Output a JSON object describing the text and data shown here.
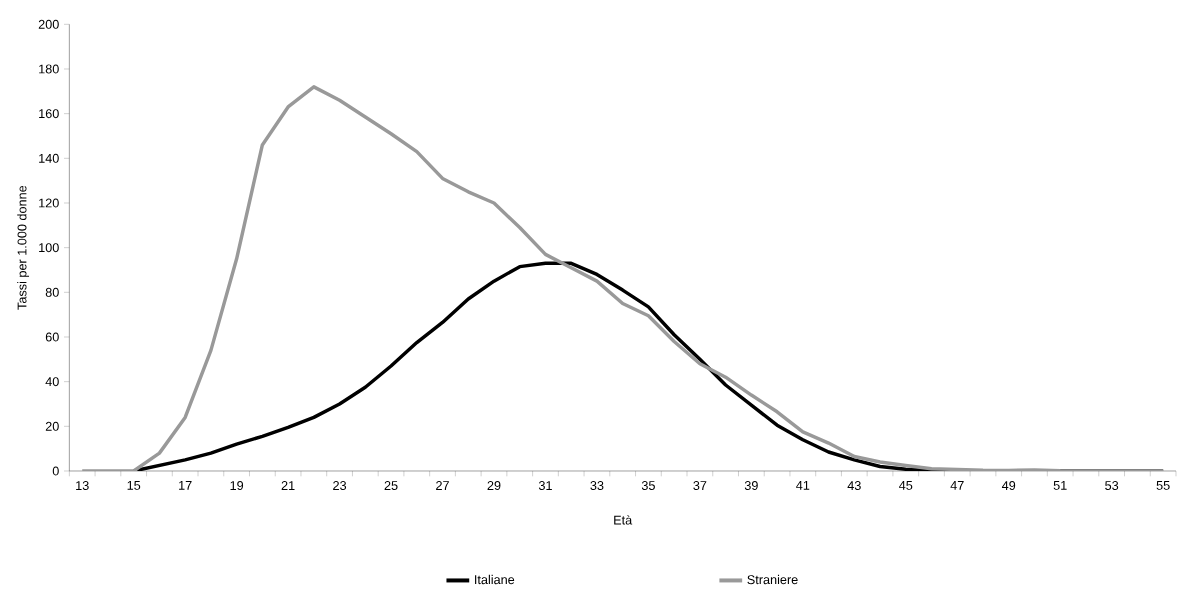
{
  "chart_data": {
    "type": "line",
    "xlabel": "Età",
    "ylabel": "Tassi per 1.000 donne",
    "categories": [
      "13",
      null,
      "15",
      null,
      "17",
      null,
      "19",
      null,
      "21",
      null,
      "23",
      null,
      "25",
      null,
      "27",
      null,
      "29",
      null,
      "31",
      null,
      "33",
      null,
      "35",
      null,
      "37",
      null,
      "39",
      null,
      "41",
      null,
      "43",
      null,
      "45",
      null,
      "47",
      null,
      "49",
      null,
      "51",
      null,
      "53",
      null,
      "55"
    ],
    "series": [
      {
        "name": "Italiane",
        "color": "#000000",
        "values": [
          null,
          null,
          0,
          2.5,
          5,
          8,
          12,
          15.5,
          19.5,
          24,
          30,
          37.5,
          47,
          57.5,
          66.5,
          77,
          85,
          91.5,
          93,
          93,
          88,
          81,
          73.5,
          61,
          50,
          38.5,
          29.5,
          20.5,
          14,
          8.5,
          5,
          2,
          0.8,
          0.2,
          0,
          0,
          0,
          0,
          0,
          0,
          0,
          0,
          0
        ]
      },
      {
        "name": "Straniere",
        "color": "#999999",
        "values": [
          0,
          0,
          0,
          8,
          24,
          54,
          95,
          146,
          163,
          172,
          166,
          158.5,
          151,
          143,
          131,
          125,
          120,
          109,
          97,
          91,
          85,
          75,
          69.5,
          58,
          48,
          42,
          34,
          26.5,
          17.5,
          12.5,
          6.5,
          4,
          2.5,
          1,
          0.7,
          0.3,
          0.2,
          0.5,
          0.1,
          0,
          0,
          0,
          0
        ]
      }
    ],
    "ylim": [
      0,
      200
    ],
    "yticks": [
      0,
      20,
      40,
      60,
      80,
      100,
      120,
      140,
      160,
      180,
      200
    ],
    "grid": false,
    "legend": "bottom",
    "marker": "none",
    "line_style": "solid"
  }
}
